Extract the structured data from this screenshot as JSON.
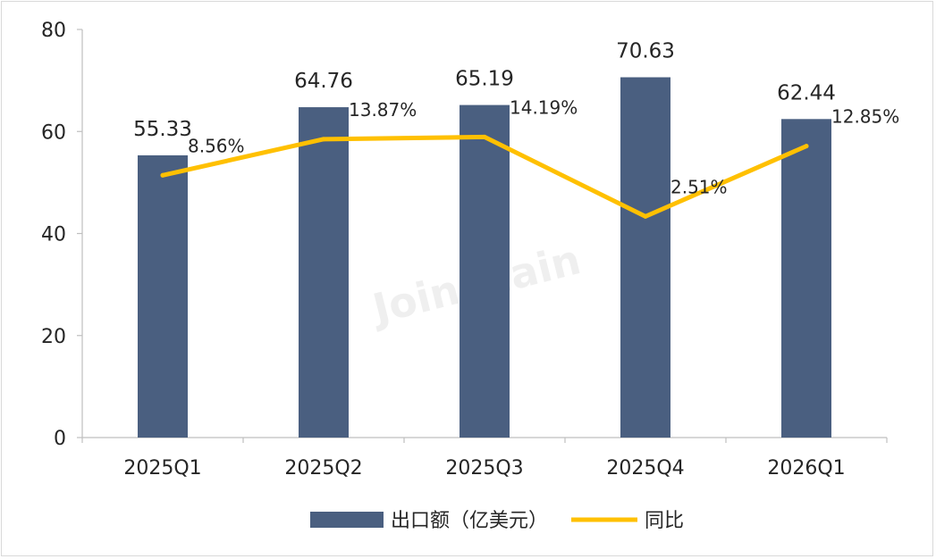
{
  "chart_data": {
    "type": "bar",
    "categories": [
      "2025Q1",
      "2025Q2",
      "2025Q3",
      "2025Q4",
      "2026Q1"
    ],
    "series": [
      {
        "name": "出口额（亿美元）",
        "type": "bar",
        "values": [
          55.33,
          64.76,
          65.19,
          70.63,
          62.44
        ],
        "labels": [
          "55.33",
          "64.76",
          "65.19",
          "70.63",
          "62.44"
        ],
        "color": "#4a5f80"
      },
      {
        "name": "同比",
        "type": "line",
        "values": [
          8.56,
          13.87,
          14.19,
          2.51,
          12.85
        ],
        "labels": [
          "8.56%",
          "13.87%",
          "14.19%",
          "2.51%",
          "12.85%"
        ],
        "color": "#ffc000"
      }
    ],
    "yticks": [
      "0",
      "20",
      "40",
      "60",
      "80"
    ],
    "ylim": [
      0,
      80
    ],
    "line_axis_hidden": true,
    "watermark": "Joinchain",
    "legend_position": "bottom",
    "grid": false
  }
}
